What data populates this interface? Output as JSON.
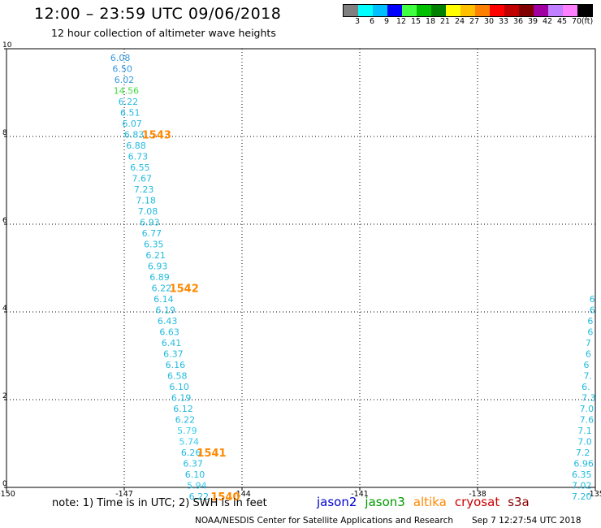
{
  "header": {
    "title": "12:00 – 23:59 UTC 09/06/2018",
    "subtitle": "12 hour collection of altimeter wave heights"
  },
  "colorbar": {
    "colors": [
      "#808080",
      "#00ffff",
      "#00bfff",
      "#0000ff",
      "#40ff40",
      "#00c000",
      "#008000",
      "#ffff00",
      "#ffc000",
      "#ff8000",
      "#ff0000",
      "#c00000",
      "#800000",
      "#a000a0",
      "#c080ff",
      "#ff80ff",
      "#000000"
    ],
    "labels": [
      "3",
      "6",
      "9",
      "12",
      "15",
      "18",
      "21",
      "24",
      "27",
      "30",
      "33",
      "36",
      "39",
      "42",
      "45",
      "70",
      "(ft)"
    ]
  },
  "chart_data": {
    "type": "scatter",
    "xlim": [
      -150,
      -135
    ],
    "ylim": [
      0,
      10
    ],
    "x_ticks": [
      "-150",
      "-147",
      "-144",
      "-141",
      "-138",
      "-135"
    ],
    "y_ticks": [
      "0",
      "2",
      "4",
      "6",
      "8",
      "10"
    ],
    "grid": true,
    "main_track": {
      "satellite": "altika",
      "points": [
        {
          "x": -147.1,
          "y": 9.8,
          "value": "6.08",
          "color": "#3399dd"
        },
        {
          "x": -147.05,
          "y": 9.55,
          "value": "6.50",
          "color": "#3399dd"
        },
        {
          "x": -147.0,
          "y": 9.3,
          "value": "6.02",
          "color": "#3399dd"
        },
        {
          "x": -146.95,
          "y": 9.05,
          "value": "14.56",
          "color": "#44dd44"
        },
        {
          "x": -146.9,
          "y": 8.8,
          "value": "6.22",
          "color": "#22bbdd"
        },
        {
          "x": -146.85,
          "y": 8.55,
          "value": "6.51",
          "color": "#22bbdd"
        },
        {
          "x": -146.8,
          "y": 8.3,
          "value": "6.07",
          "color": "#22bbdd"
        },
        {
          "x": -146.75,
          "y": 8.05,
          "value": "6.83",
          "color": "#22bbdd"
        },
        {
          "x": -146.7,
          "y": 7.8,
          "value": "6.88",
          "color": "#22bbdd"
        },
        {
          "x": -146.65,
          "y": 7.55,
          "value": "6.73",
          "color": "#22bbdd"
        },
        {
          "x": -146.6,
          "y": 7.3,
          "value": "6.55",
          "color": "#22bbdd"
        },
        {
          "x": -146.55,
          "y": 7.05,
          "value": "7.67",
          "color": "#22bbdd"
        },
        {
          "x": -146.5,
          "y": 6.8,
          "value": "7.23",
          "color": "#22bbdd"
        },
        {
          "x": -146.45,
          "y": 6.55,
          "value": "7.18",
          "color": "#22bbdd"
        },
        {
          "x": -146.4,
          "y": 6.3,
          "value": "7.08",
          "color": "#22bbdd"
        },
        {
          "x": -146.35,
          "y": 6.05,
          "value": "6.93",
          "color": "#22bbdd"
        },
        {
          "x": -146.3,
          "y": 5.8,
          "value": "6.77",
          "color": "#22bbdd"
        },
        {
          "x": -146.25,
          "y": 5.55,
          "value": "6.35",
          "color": "#22bbdd"
        },
        {
          "x": -146.2,
          "y": 5.3,
          "value": "6.21",
          "color": "#22bbdd"
        },
        {
          "x": -146.15,
          "y": 5.05,
          "value": "6.93",
          "color": "#22bbdd"
        },
        {
          "x": -146.1,
          "y": 4.8,
          "value": "6.89",
          "color": "#22bbdd"
        },
        {
          "x": -146.05,
          "y": 4.55,
          "value": "6.22",
          "color": "#22bbdd"
        },
        {
          "x": -146.0,
          "y": 4.3,
          "value": "6.14",
          "color": "#22bbdd"
        },
        {
          "x": -145.95,
          "y": 4.05,
          "value": "6.19",
          "color": "#22bbdd"
        },
        {
          "x": -145.9,
          "y": 3.8,
          "value": "6.43",
          "color": "#22bbdd"
        },
        {
          "x": -145.85,
          "y": 3.55,
          "value": "6.63",
          "color": "#22bbdd"
        },
        {
          "x": -145.8,
          "y": 3.3,
          "value": "6.41",
          "color": "#22bbdd"
        },
        {
          "x": -145.75,
          "y": 3.05,
          "value": "6.37",
          "color": "#22bbdd"
        },
        {
          "x": -145.7,
          "y": 2.8,
          "value": "6.16",
          "color": "#22bbdd"
        },
        {
          "x": -145.65,
          "y": 2.55,
          "value": "6.58",
          "color": "#22bbdd"
        },
        {
          "x": -145.6,
          "y": 2.3,
          "value": "6.10",
          "color": "#22bbdd"
        },
        {
          "x": -145.55,
          "y": 2.05,
          "value": "6.19",
          "color": "#22bbdd"
        },
        {
          "x": -145.5,
          "y": 1.8,
          "value": "6.12",
          "color": "#22bbdd"
        },
        {
          "x": -145.45,
          "y": 1.55,
          "value": "6.22",
          "color": "#22bbdd"
        },
        {
          "x": -145.4,
          "y": 1.3,
          "value": "5.79",
          "color": "#33ccee"
        },
        {
          "x": -145.35,
          "y": 1.05,
          "value": "5.74",
          "color": "#33ccee"
        },
        {
          "x": -145.3,
          "y": 0.8,
          "value": "6.26",
          "color": "#22bbdd"
        },
        {
          "x": -145.25,
          "y": 0.55,
          "value": "6.37",
          "color": "#22bbdd"
        },
        {
          "x": -145.2,
          "y": 0.3,
          "value": "6.10",
          "color": "#22bbdd"
        },
        {
          "x": -145.15,
          "y": 0.05,
          "value": "5.94",
          "color": "#33ccee"
        },
        {
          "x": -145.1,
          "y": -0.2,
          "value": "6.22",
          "color": "#22bbdd"
        }
      ]
    },
    "time_labels": [
      {
        "text": "1543",
        "x": -146.55,
        "y": 8.05
      },
      {
        "text": "1542",
        "x": -145.85,
        "y": 4.55
      },
      {
        "text": "1541",
        "x": -145.15,
        "y": 0.8
      },
      {
        "text": "1540",
        "x": -144.8,
        "y": -0.2
      }
    ],
    "edge_track": {
      "satellite": "altika",
      "points": [
        {
          "x": -135.15,
          "y": 4.3,
          "value": "6",
          "color": "#22bbdd"
        },
        {
          "x": -135.15,
          "y": 4.05,
          "value": "6",
          "color": "#22bbdd"
        },
        {
          "x": -135.2,
          "y": 3.8,
          "value": "6",
          "color": "#22bbdd"
        },
        {
          "x": -135.2,
          "y": 3.55,
          "value": "6",
          "color": "#22bbdd"
        },
        {
          "x": -135.25,
          "y": 3.3,
          "value": "7",
          "color": "#22bbdd"
        },
        {
          "x": -135.25,
          "y": 3.05,
          "value": "6",
          "color": "#22bbdd"
        },
        {
          "x": -135.3,
          "y": 2.8,
          "value": "6",
          "color": "#22bbdd"
        },
        {
          "x": -135.3,
          "y": 2.55,
          "value": "7.",
          "color": "#22bbdd"
        },
        {
          "x": -135.35,
          "y": 2.3,
          "value": "6.",
          "color": "#22bbdd"
        },
        {
          "x": -135.35,
          "y": 2.05,
          "value": "7.3",
          "color": "#22bbdd"
        },
        {
          "x": -135.4,
          "y": 1.8,
          "value": "7.0",
          "color": "#22bbdd"
        },
        {
          "x": -135.4,
          "y": 1.55,
          "value": "7.6",
          "color": "#22bbdd"
        },
        {
          "x": -135.45,
          "y": 1.3,
          "value": "7.1",
          "color": "#22bbdd"
        },
        {
          "x": -135.45,
          "y": 1.05,
          "value": "7.0",
          "color": "#22bbdd"
        },
        {
          "x": -135.5,
          "y": 0.8,
          "value": "7.2",
          "color": "#22bbdd"
        },
        {
          "x": -135.55,
          "y": 0.55,
          "value": "6.96",
          "color": "#22bbdd"
        },
        {
          "x": -135.6,
          "y": 0.3,
          "value": "6.35",
          "color": "#22bbdd"
        },
        {
          "x": -135.6,
          "y": 0.05,
          "value": "7.02",
          "color": "#22bbdd"
        },
        {
          "x": -135.6,
          "y": -0.2,
          "value": "7.20",
          "color": "#22bbdd"
        }
      ]
    }
  },
  "footer": {
    "note": "note:  1) Time is in UTC;  2) SWH is in feet",
    "legend": [
      {
        "name": "jason2",
        "color": "#0000cc"
      },
      {
        "name": "jason3",
        "color": "#009900"
      },
      {
        "name": "altika",
        "color": "#ff8800"
      },
      {
        "name": "cryosat",
        "color": "#cc0000"
      },
      {
        "name": "s3a",
        "color": "#880000"
      }
    ],
    "credit": "NOAA/NESDIS Center for Satellite Applications and Research",
    "credit_time": "Sep  7 12:27:54 UTC 2018"
  },
  "colors": {
    "time_label": "#ff8800",
    "grid": "#000000"
  }
}
